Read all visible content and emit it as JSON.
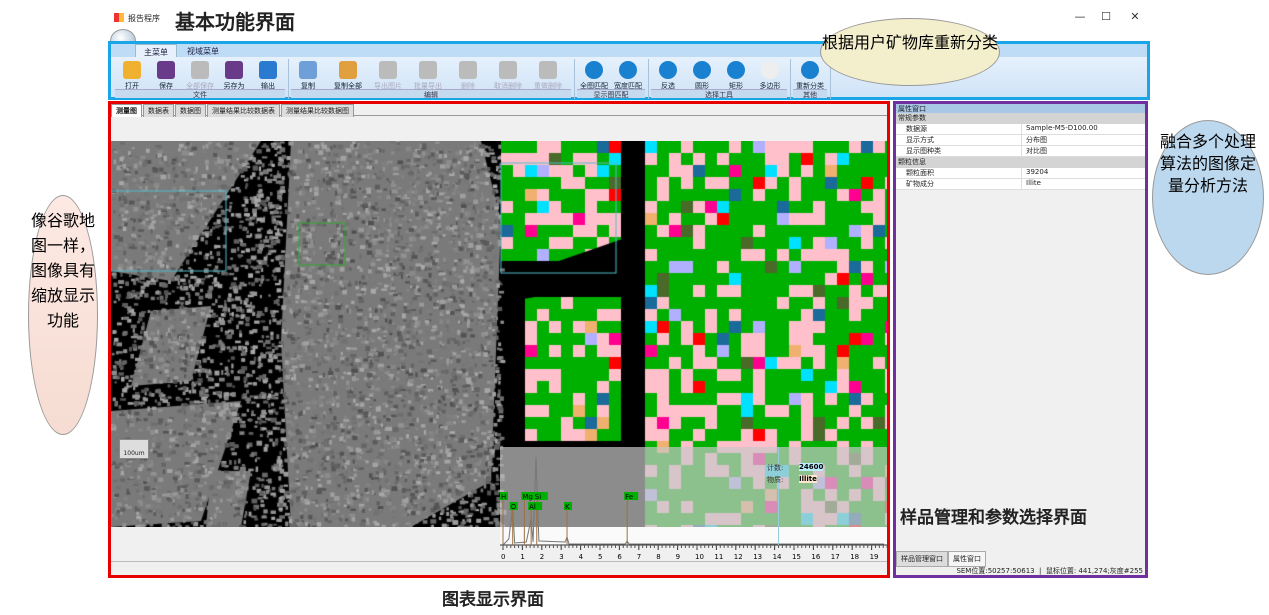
{
  "window": {
    "title": "报告程序",
    "controls": [
      "—",
      "☐",
      "✕"
    ]
  },
  "annotations": {
    "top": "基本功能界面",
    "top_bubble": "根据用户矿物库重新分类",
    "left_bubble": "像谷歌地图一样，图像具有缩放显示功能",
    "right_bubble": "融合多个处理算法的图像定量分析方法",
    "right": "样品管理和参数选择界面",
    "bottom": "图表显示界面"
  },
  "ribbon": {
    "tabs": [
      "主菜单",
      "视域菜单"
    ],
    "groups": [
      {
        "label": "文件",
        "buttons": [
          {
            "label": "打开",
            "icon": "folder-open-icon",
            "enabled": true,
            "color": "#f0b030"
          },
          {
            "label": "保存",
            "icon": "save-icon",
            "enabled": true,
            "color": "#6a3a8a"
          },
          {
            "label": "全部保存",
            "icon": "save-all-icon",
            "enabled": false,
            "color": "#bbb"
          },
          {
            "label": "另存为",
            "icon": "save-as-icon",
            "enabled": true,
            "color": "#6a3a8a"
          },
          {
            "label": "输出",
            "icon": "globe-icon",
            "enabled": true,
            "color": "#2a7ad0"
          }
        ]
      },
      {
        "label": "编辑",
        "buttons": [
          {
            "label": "复制",
            "icon": "copy-icon",
            "enabled": true,
            "color": "#6f9fd8"
          },
          {
            "label": "复制全部",
            "icon": "copy-all-icon",
            "enabled": true,
            "color": "#e0a040"
          },
          {
            "label": "导出图片",
            "icon": "export-image-icon",
            "enabled": false,
            "color": "#bbb"
          },
          {
            "label": "批量导出",
            "icon": "batch-export-icon",
            "enabled": false,
            "color": "#bbb"
          },
          {
            "label": "删除",
            "icon": "delete-icon",
            "enabled": false,
            "color": "#bbb"
          },
          {
            "label": "取消删除",
            "icon": "undo-delete-icon",
            "enabled": false,
            "color": "#bbb"
          },
          {
            "label": "重做删除",
            "icon": "redo-delete-icon",
            "enabled": false,
            "color": "#bbb"
          }
        ]
      },
      {
        "label": "显示图匹配",
        "buttons": [
          {
            "label": "全图匹配",
            "icon": "fit-all-icon",
            "enabled": true,
            "color": "#1a80d0"
          },
          {
            "label": "宽度匹配",
            "icon": "fit-width-icon",
            "enabled": true,
            "color": "#1a80d0"
          }
        ]
      },
      {
        "label": "选择工具",
        "buttons": [
          {
            "label": "反选",
            "icon": "invert-selection-icon",
            "enabled": true,
            "color": "#1a80d0"
          },
          {
            "label": "圆形",
            "icon": "circle-icon",
            "enabled": true,
            "color": "#1a80d0"
          },
          {
            "label": "矩形",
            "icon": "rectangle-icon",
            "enabled": true,
            "color": "#1a80d0"
          },
          {
            "label": "多边形",
            "icon": "polygon-icon",
            "enabled": true,
            "color": "#eee"
          }
        ]
      },
      {
        "label": "其他",
        "buttons": [
          {
            "label": "重新分类",
            "icon": "reclassify-icon",
            "enabled": true,
            "color": "#1a80d0"
          }
        ]
      }
    ]
  },
  "doc_tabs": [
    "测量图",
    "数据表",
    "数据图",
    "测量结果比较数据表",
    "测量结果比较数据图"
  ],
  "viewer": {
    "scale_label": "100um",
    "count_label": "计数:",
    "count_value": "24600",
    "phase_label": "物质:",
    "phase_value": "Illite"
  },
  "spectrum": {
    "elements": [
      "H",
      "O",
      "Mg",
      "Si",
      "Al",
      "K",
      "Fe"
    ],
    "axis_ticks": [
      0,
      1,
      2,
      3,
      4,
      5,
      6,
      7,
      8,
      9,
      10,
      11,
      12,
      13,
      14,
      15,
      16,
      17,
      18,
      19
    ]
  },
  "properties": {
    "title": "属性窗口",
    "categories": [
      {
        "name": "常规参数",
        "rows": [
          {
            "key": "数据源",
            "value": "Sample-M5-D100.00"
          },
          {
            "key": "显示方式",
            "value": "分布图"
          },
          {
            "key": "显示图种类",
            "value": "对比图"
          }
        ]
      },
      {
        "name": "颗粒信息",
        "rows": [
          {
            "key": "颗粒面积",
            "value": "39204"
          },
          {
            "key": "矿物成分",
            "value": "Illite"
          }
        ]
      }
    ],
    "tabs": [
      "样品管理窗口",
      "属性窗口"
    ]
  },
  "status": {
    "sem": "SEM位置:50257:50613",
    "mouse": "鼠标位置: 441,274;灰度#255"
  },
  "map_colors": [
    "#00b000",
    "#ffc0cb",
    "#00e0ff",
    "#4a6a2a",
    "#ff0090",
    "#ff0000",
    "#f0b070",
    "#1a6a9a",
    "#b0b0ff"
  ]
}
